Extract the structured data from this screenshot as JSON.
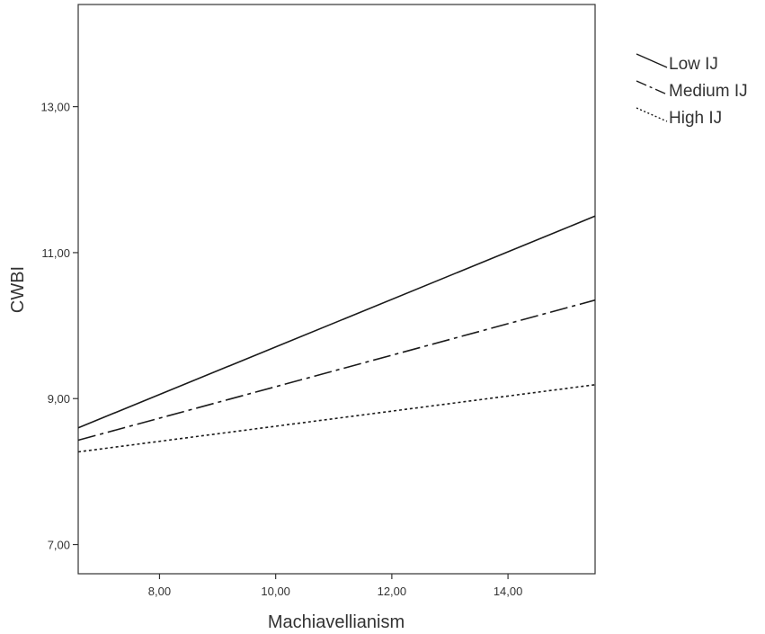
{
  "chart_data": {
    "type": "line",
    "xlabel": "Machiavellianism",
    "ylabel": "CWBI",
    "xlim": [
      6.6,
      15.5
    ],
    "ylim": [
      6.6,
      14.4
    ],
    "x_ticks": [
      {
        "value": 8,
        "label": "8,00"
      },
      {
        "value": 10,
        "label": "10,00"
      },
      {
        "value": 12,
        "label": "12,00"
      },
      {
        "value": 14,
        "label": "14,00"
      }
    ],
    "y_ticks": [
      {
        "value": 7,
        "label": "7,00"
      },
      {
        "value": 9,
        "label": "9,00"
      },
      {
        "value": 11,
        "label": "11,00"
      },
      {
        "value": 13,
        "label": "13,00"
      }
    ],
    "grid": false,
    "legend_position": "right-top",
    "series": [
      {
        "name": "Low IJ",
        "style": "solid",
        "x": [
          6.6,
          15.5
        ],
        "y": [
          8.6,
          11.5
        ]
      },
      {
        "name": "Medium IJ",
        "style": "dash-dot",
        "x": [
          6.6,
          15.5
        ],
        "y": [
          8.43,
          10.35
        ]
      },
      {
        "name": "High IJ",
        "style": "dotted",
        "x": [
          6.6,
          15.5
        ],
        "y": [
          8.27,
          9.19
        ]
      }
    ],
    "colors": {
      "line": "#1a1a1a",
      "axis": "#333333",
      "text": "#333333"
    }
  }
}
